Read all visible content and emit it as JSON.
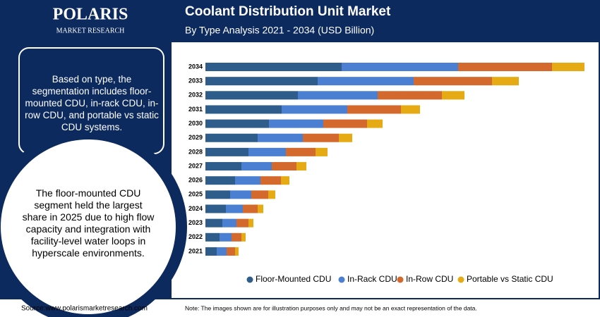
{
  "brand": {
    "name": "POLARIS",
    "tagline": "MARKET RESEARCH"
  },
  "summary": "Based on type, the segmentation includes floor-mounted CDU, in-rack CDU, in-row CDU, and portable vs static CDU systems.",
  "highlight": "The floor-mounted CDU segment held the largest share in 2025 due to high flow capacity and integration with facility-level water loops in hyperscale environments.",
  "source": "Source:www.polarismarketresearch.com",
  "note": "Note: The images shown are for illustration purposes only and may not be an exact representation of the data.",
  "chart_data": {
    "type": "stacked-barh",
    "title": "Coolant Distribution Unit Market",
    "subtitle": "By Type Analysis 2021 - 2034 (USD Billion)",
    "categories": [
      "2034",
      "2033",
      "2032",
      "2031",
      "2030",
      "2029",
      "2028",
      "2027",
      "2026",
      "2025",
      "2024",
      "2023",
      "2022",
      "2021"
    ],
    "xlim": [
      0,
      550
    ],
    "series": [
      {
        "name": "Floor-Mounted CDU",
        "color": "#2e5d8c",
        "values": [
          193,
          159,
          131,
          108,
          90,
          74,
          61,
          51,
          42,
          35,
          29,
          24,
          20,
          16
        ]
      },
      {
        "name": "In-Rack CDU",
        "color": "#4a7fd2",
        "values": [
          165,
          136,
          113,
          93,
          77,
          64,
          53,
          43,
          36,
          30,
          24,
          20,
          17,
          14
        ]
      },
      {
        "name": "In-Row CDU",
        "color": "#d4692e",
        "values": [
          133,
          111,
          91,
          76,
          62,
          51,
          42,
          35,
          29,
          24,
          21,
          17,
          14,
          12
        ]
      },
      {
        "name": "Portable vs Static CDU",
        "color": "#e6ab14",
        "values": [
          46,
          38,
          32,
          27,
          22,
          19,
          17,
          14,
          12,
          10,
          8,
          7,
          6,
          5
        ]
      }
    ]
  }
}
